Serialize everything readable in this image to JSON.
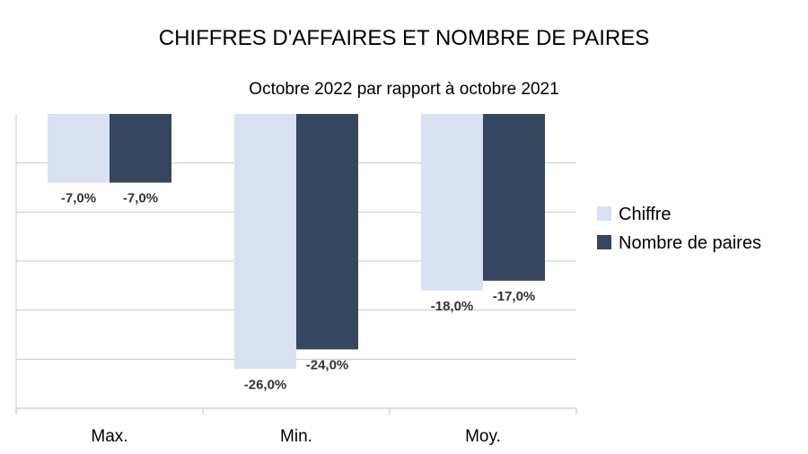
{
  "chart_data": {
    "type": "bar",
    "title": "CHIFFRES D'AFFAIRES ET NOMBRE DE PAIRES",
    "subtitle": "Octobre 2022 par rapport à octobre 2021",
    "categories": [
      "Max.",
      "Min.",
      "Moy."
    ],
    "series": [
      {
        "name": "Chiffre",
        "values": [
          -7.0,
          -26.0,
          -18.0
        ],
        "labels": [
          "-7,0%",
          "-26,0%",
          "-18,0%"
        ],
        "color": "#d9e1f2"
      },
      {
        "name": "Nombre de paires",
        "values": [
          -7.0,
          -24.0,
          -17.0
        ],
        "labels": [
          "-7,0%",
          "-24,0%",
          "-17,0%"
        ],
        "color": "#35465f"
      }
    ],
    "ylim": [
      -30,
      0
    ],
    "grid": true,
    "legend_position": "right",
    "xlabel": "",
    "ylabel": ""
  }
}
